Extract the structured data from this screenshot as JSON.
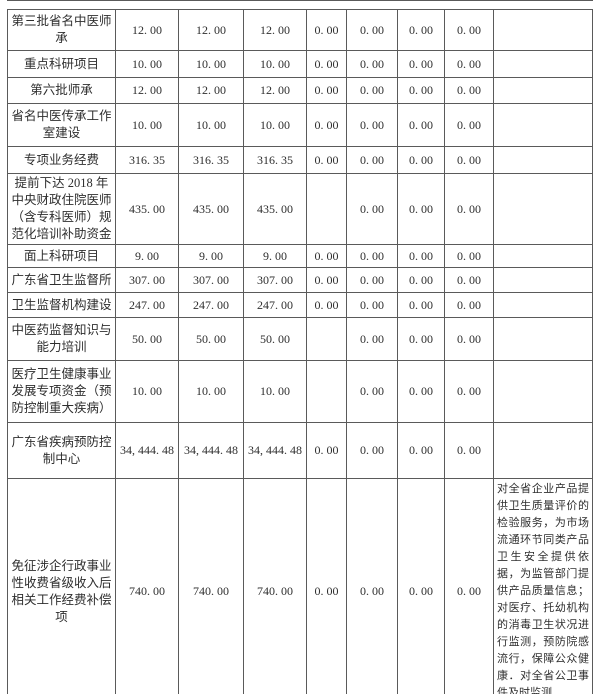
{
  "colors": {
    "background": "#ffffff",
    "border": "#5a5a5a",
    "text": "#2e2e2e"
  },
  "table": {
    "rows": [
      {
        "label": "第三批省名中医师承",
        "values": [
          "12. 00",
          "12. 00",
          "12. 00",
          "0. 00",
          "0. 00",
          "0. 00",
          "0. 00"
        ],
        "note": ""
      },
      {
        "label": "重点科研项目",
        "values": [
          "10. 00",
          "10. 00",
          "10. 00",
          "0. 00",
          "0. 00",
          "0. 00",
          "0. 00"
        ],
        "note": ""
      },
      {
        "label": "第六批师承",
        "values": [
          "12. 00",
          "12. 00",
          "12. 00",
          "0. 00",
          "0. 00",
          "0. 00",
          "0. 00"
        ],
        "note": ""
      },
      {
        "label": "省名中医传承工作室建设",
        "values": [
          "10. 00",
          "10. 00",
          "10. 00",
          "0. 00",
          "0. 00",
          "0. 00",
          "0. 00"
        ],
        "note": ""
      },
      {
        "label": "专项业务经费",
        "values": [
          "316. 35",
          "316. 35",
          "316. 35",
          "0. 00",
          "0. 00",
          "0. 00",
          "0. 00"
        ],
        "note": ""
      },
      {
        "label": "提前下达 2018 年中央财政住院医师（含专科医师）规范化培训补助资金",
        "values": [
          "435. 00",
          "435. 00",
          "435. 00",
          "",
          "0. 00",
          "0. 00",
          "0. 00"
        ],
        "note": ""
      },
      {
        "label": "面上科研项目",
        "values": [
          "9. 00",
          "9. 00",
          "9. 00",
          "0. 00",
          "0. 00",
          "0. 00",
          "0. 00"
        ],
        "note": ""
      },
      {
        "label": "广东省卫生监督所",
        "values": [
          "307. 00",
          "307. 00",
          "307. 00",
          "0. 00",
          "0. 00",
          "0. 00",
          "0. 00"
        ],
        "note": ""
      },
      {
        "label": "卫生监督机构建设",
        "values": [
          "247. 00",
          "247. 00",
          "247. 00",
          "0. 00",
          "0. 00",
          "0. 00",
          "0. 00"
        ],
        "note": ""
      },
      {
        "label": "中医药监督知识与能力培训",
        "values": [
          "50. 00",
          "50. 00",
          "50. 00",
          "",
          "0. 00",
          "0. 00",
          "0. 00"
        ],
        "note": ""
      },
      {
        "label": "医疗卫生健康事业发展专项资金（预防控制重大疾病）",
        "values": [
          "10. 00",
          "10. 00",
          "10. 00",
          "",
          "0. 00",
          "0. 00",
          "0. 00"
        ],
        "note": ""
      },
      {
        "label": "广东省疾病预防控制中心",
        "values": [
          "34, 444. 48",
          "34, 444. 48",
          "34, 444. 48",
          "0. 00",
          "0. 00",
          "0. 00",
          "0. 00"
        ],
        "note": ""
      },
      {
        "label": "免征涉企行政事业性收费省级收入后相关工作经费补偿项",
        "values": [
          "740. 00",
          "740. 00",
          "740. 00",
          "0. 00",
          "0. 00",
          "0. 00",
          "0. 00"
        ],
        "note": "对全省企业产品提供卫生质量评价的检验服务，为市场流通环节同类产品卫生安全提供依据，为监管部门提供产品质量信息；对医疗、托幼机构的消毒卫生状况进行监测，预防院感流行，保障公众健康．对全省公卫事件及时监测"
      }
    ]
  }
}
